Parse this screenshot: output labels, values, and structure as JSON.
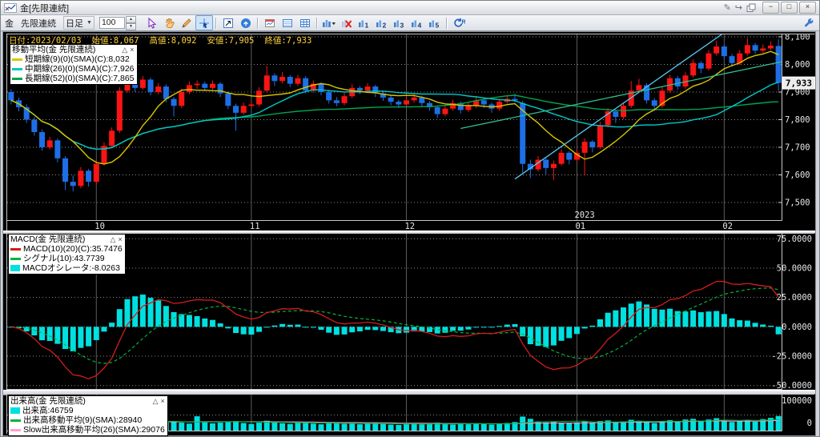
{
  "window": {
    "title": "金[先限連続]",
    "controls": {
      "minimize": "−",
      "maximize": "□",
      "close": "×"
    },
    "title_icons": [
      "pen-icon",
      "redo-icon",
      "layers-icon"
    ]
  },
  "toolbar": {
    "instrument": "金",
    "contract": "先限連続",
    "timeframe": "日足",
    "bar_count": "100",
    "icon_buttons": [
      {
        "name": "select-tool-icon",
        "kind": "select"
      },
      {
        "name": "pan-hand-icon",
        "kind": "hand"
      },
      {
        "name": "draw-line-icon",
        "kind": "pencil"
      },
      {
        "name": "crosshair-tool-icon",
        "kind": "crosshair",
        "active": true
      },
      {
        "kind": "sep"
      },
      {
        "name": "chart-pointer-icon",
        "kind": "chartcursor"
      },
      {
        "name": "jump-latest-icon",
        "kind": "jump"
      },
      {
        "kind": "sep"
      },
      {
        "name": "new-chart-window-icon",
        "kind": "newwin"
      },
      {
        "name": "data-table-icon",
        "kind": "table"
      },
      {
        "name": "grid-settings-icon",
        "kind": "grid"
      },
      {
        "kind": "sep"
      },
      {
        "name": "chart-style-dropdown-icon",
        "kind": "barsdd"
      },
      {
        "name": "remove-indicator-icon",
        "kind": "redx"
      },
      {
        "name": "layout-1-icon",
        "kind": "preset",
        "n": "1"
      },
      {
        "name": "layout-2-icon",
        "kind": "preset",
        "n": "2"
      },
      {
        "name": "layout-3-icon",
        "kind": "preset",
        "n": "3"
      },
      {
        "name": "layout-4-icon",
        "kind": "preset",
        "n": "4"
      },
      {
        "name": "layout-5-icon",
        "kind": "preset",
        "n": "5"
      },
      {
        "kind": "sep"
      },
      {
        "name": "reload-icon",
        "kind": "reload"
      }
    ]
  },
  "info_bar": {
    "date": "日付:2023/02/03",
    "open": "始値:8,067",
    "high": "高値:8,092",
    "low": "安値:7,905",
    "close": "終値:7,933"
  },
  "ui": {
    "legend_collapse": "△",
    "legend_close": "×"
  },
  "chart_data": [
    {
      "type": "candlestick",
      "instrument": "金[先限連続]",
      "timeframe": "日足",
      "x_axis": {
        "tick_labels": [
          "10",
          "11",
          "12",
          "01",
          "02"
        ],
        "tick_positions": [
          11,
          31,
          51,
          73,
          92
        ],
        "year_label": "2023",
        "year_position": 73
      },
      "y_axis": {
        "ticks": [
          {
            "v": 8100,
            "label": "8,100"
          },
          {
            "v": 8000,
            "label": "8,000"
          },
          {
            "v": 7900,
            "label": "7,900"
          },
          {
            "v": 7800,
            "label": "7,800"
          },
          {
            "v": 7700,
            "label": "7,700"
          },
          {
            "v": 7600,
            "label": "7,600"
          },
          {
            "v": 7500,
            "label": "7,500"
          }
        ],
        "current": {
          "v": 7933,
          "label": "7,933"
        }
      },
      "legend": {
        "title": "移動平均(金  先限連続)",
        "series": [
          {
            "label": "短期線(9)(0)(SMA)(C):8,032",
            "color": "#d8c600",
            "period": 9
          },
          {
            "label": "中期線(26)(0)(SMA)(C):7,926",
            "color": "#00c8c8",
            "period": 26
          },
          {
            "label": "長期線(52)(0)(SMA)(C):7,865",
            "color": "#00a550",
            "period": 52
          }
        ]
      },
      "colors": {
        "up": "#fa1414",
        "down": "#1e6fe6",
        "grid": "#8c8c8c",
        "vgrid": "#5c5c5c",
        "border": "#c8c8c8",
        "bg": "#000000"
      },
      "trend_lines": [
        {
          "from": [
            65,
            7585
          ],
          "to": [
            92.5,
            8125
          ],
          "color": "#55c8f0"
        },
        {
          "from": [
            58,
            7768
          ],
          "to": [
            99.5,
            8010
          ],
          "color": "#2fbf8f"
        }
      ],
      "candles": [
        [
          7900,
          7910,
          7855,
          7870
        ],
        [
          7870,
          7880,
          7830,
          7845
        ],
        [
          7845,
          7855,
          7788,
          7800
        ],
        [
          7800,
          7810,
          7742,
          7755
        ],
        [
          7755,
          7765,
          7688,
          7700
        ],
        [
          7700,
          7738,
          7692,
          7725
        ],
        [
          7725,
          7732,
          7645,
          7660
        ],
        [
          7660,
          7668,
          7545,
          7575
        ],
        [
          7575,
          7598,
          7540,
          7560
        ],
        [
          7560,
          7628,
          7552,
          7615
        ],
        [
          7615,
          7622,
          7558,
          7575
        ],
        [
          7575,
          7652,
          7568,
          7640
        ],
        [
          7640,
          7718,
          7634,
          7705
        ],
        [
          7705,
          7772,
          7698,
          7760
        ],
        [
          7760,
          7918,
          7752,
          7905
        ],
        [
          7905,
          7990,
          7898,
          7950
        ],
        [
          7950,
          7962,
          7900,
          7915
        ],
        [
          7915,
          7958,
          7908,
          7945
        ],
        [
          7945,
          7952,
          7888,
          7900
        ],
        [
          7900,
          7932,
          7892,
          7920
        ],
        [
          7920,
          7928,
          7862,
          7875
        ],
        [
          7875,
          7882,
          7812,
          7850
        ],
        [
          7850,
          7912,
          7842,
          7900
        ],
        [
          7900,
          7938,
          7892,
          7925
        ],
        [
          7925,
          7942,
          7912,
          7930
        ],
        [
          7930,
          7938,
          7902,
          7915
        ],
        [
          7915,
          7942,
          7908,
          7930
        ],
        [
          7930,
          7936,
          7882,
          7895
        ],
        [
          7895,
          7902,
          7838,
          7850
        ],
        [
          7850,
          7858,
          7760,
          7825
        ],
        [
          7825,
          7862,
          7818,
          7850
        ],
        [
          7850,
          7868,
          7842,
          7855
        ],
        [
          7855,
          7918,
          7848,
          7905
        ],
        [
          7905,
          7995,
          7898,
          7960
        ],
        [
          7960,
          7968,
          7922,
          7940
        ],
        [
          7940,
          7972,
          7932,
          7955
        ],
        [
          7955,
          7962,
          7918,
          7930
        ],
        [
          7930,
          7962,
          7922,
          7950
        ],
        [
          7950,
          7958,
          7895,
          7905
        ],
        [
          7905,
          7942,
          7898,
          7930
        ],
        [
          7930,
          7936,
          7888,
          7900
        ],
        [
          7900,
          7908,
          7858,
          7870
        ],
        [
          7870,
          7882,
          7848,
          7860
        ],
        [
          7860,
          7898,
          7852,
          7885
        ],
        [
          7885,
          7928,
          7878,
          7915
        ],
        [
          7915,
          7922,
          7892,
          7905
        ],
        [
          7905,
          7932,
          7898,
          7920
        ],
        [
          7920,
          7926,
          7882,
          7895
        ],
        [
          7895,
          7902,
          7868,
          7880
        ],
        [
          7880,
          7888,
          7852,
          7865
        ],
        [
          7865,
          7872,
          7842,
          7855
        ],
        [
          7855,
          7882,
          7848,
          7870
        ],
        [
          7870,
          7892,
          7862,
          7880
        ],
        [
          7880,
          7886,
          7848,
          7860
        ],
        [
          7860,
          7868,
          7832,
          7845
        ],
        [
          7845,
          7852,
          7805,
          7820
        ],
        [
          7820,
          7852,
          7812,
          7840
        ],
        [
          7840,
          7872,
          7832,
          7860
        ],
        [
          7860,
          7866,
          7822,
          7835
        ],
        [
          7835,
          7862,
          7828,
          7850
        ],
        [
          7850,
          7882,
          7842,
          7870
        ],
        [
          7870,
          7878,
          7842,
          7855
        ],
        [
          7855,
          7862,
          7825,
          7840
        ],
        [
          7840,
          7875,
          7832,
          7865
        ],
        [
          7865,
          7888,
          7858,
          7875
        ],
        [
          7875,
          7895,
          7862,
          7870
        ],
        [
          7860,
          7868,
          7608,
          7640
        ],
        [
          7640,
          7655,
          7588,
          7620
        ],
        [
          7620,
          7668,
          7612,
          7655
        ],
        [
          7655,
          7662,
          7602,
          7625
        ],
        [
          7625,
          7652,
          7582,
          7640
        ],
        [
          7640,
          7692,
          7634,
          7680
        ],
        [
          7680,
          7686,
          7638,
          7655
        ],
        [
          7655,
          7692,
          7648,
          7680
        ],
        [
          7680,
          7732,
          7598,
          7720
        ],
        [
          7720,
          7726,
          7682,
          7700
        ],
        [
          7700,
          7792,
          7694,
          7780
        ],
        [
          7780,
          7842,
          7772,
          7830
        ],
        [
          7830,
          7836,
          7788,
          7810
        ],
        [
          7810,
          7862,
          7802,
          7850
        ],
        [
          7850,
          7940,
          7842,
          7905
        ],
        [
          7905,
          7948,
          7898,
          7925
        ],
        [
          7925,
          7932,
          7858,
          7870
        ],
        [
          7870,
          7878,
          7832,
          7850
        ],
        [
          7850,
          7918,
          7842,
          7905
        ],
        [
          7905,
          7962,
          7898,
          7950
        ],
        [
          7950,
          7958,
          7908,
          7920
        ],
        [
          7920,
          7972,
          7912,
          7960
        ],
        [
          7960,
          8018,
          7952,
          8005
        ],
        [
          8005,
          8012,
          7968,
          7985
        ],
        [
          7985,
          8052,
          7978,
          8040
        ],
        [
          8040,
          8085,
          8032,
          8065
        ],
        [
          8065,
          8072,
          8018,
          8030
        ],
        [
          8030,
          8038,
          7992,
          8005
        ],
        [
          8005,
          8052,
          7998,
          8040
        ],
        [
          8040,
          8095,
          8032,
          8070
        ],
        [
          8070,
          8078,
          8038,
          8050
        ],
        [
          8050,
          8072,
          8042,
          8058
        ],
        [
          8058,
          8084,
          8052,
          8068
        ],
        [
          8067,
          8092,
          7905,
          7933
        ]
      ]
    },
    {
      "type": "macd",
      "params": {
        "fast": 10,
        "slow": 20,
        "signal": 10
      },
      "display_scale": 0.65,
      "y_axis": {
        "ticks": [
          {
            "v": 75,
            "label": "75.0000"
          },
          {
            "v": 50,
            "label": "50.0000"
          },
          {
            "v": 25,
            "label": "25.0000"
          },
          {
            "v": 0,
            "label": "0.0000"
          },
          {
            "v": -25,
            "label": "-25.0000"
          },
          {
            "v": -50,
            "label": "-50.0000"
          }
        ]
      },
      "legend": {
        "title": "MACD(金  先限連続)",
        "series": [
          {
            "label": "MACD(10)(20)(C):35.7476",
            "color": "#d41c1c",
            "style": "solid"
          },
          {
            "label": "シグナル(10):43.7739",
            "color": "#00b43c",
            "style": "dashed"
          },
          {
            "label": "MACDオシレータ:-8.0263",
            "color": "#00e0e0",
            "style": "bar"
          }
        ]
      }
    },
    {
      "type": "volume",
      "y_axis": {
        "ticks": [
          {
            "v": 100000,
            "label": "100000"
          },
          {
            "v": 0,
            "label": "0"
          }
        ],
        "grid_v": 50000
      },
      "legend": {
        "title": "出来高(金  先限連続)",
        "series": [
          {
            "label": "出来高:46759",
            "color": "#00e0e0",
            "style": "bar"
          },
          {
            "label": "出来高移動平均(9)(SMA):28940",
            "color": "#00b43c",
            "style": "solid",
            "period": 9
          },
          {
            "label": "Slow出来高移動平均(26)(SMA):29076",
            "color": "#ff9ed2",
            "style": "solid",
            "period": 26
          }
        ]
      },
      "values": [
        26000,
        24000,
        28000,
        30000,
        27000,
        22000,
        25000,
        36000,
        32000,
        28000,
        24000,
        27000,
        30000,
        33000,
        40000,
        38000,
        30000,
        26000,
        24000,
        25000,
        27000,
        30000,
        26000,
        23000,
        46000,
        28000,
        24000,
        26000,
        29000,
        31000,
        25000,
        22000,
        26000,
        32000,
        27000,
        24000,
        22000,
        25000,
        27000,
        23000,
        21000,
        24000,
        26000,
        22000,
        25000,
        21000,
        23000,
        25000,
        22000,
        20000,
        19000,
        22000,
        24000,
        21000,
        23000,
        26000,
        22000,
        20000,
        23000,
        21000,
        24000,
        22000,
        20000,
        23000,
        25000,
        28000,
        45000,
        38000,
        30000,
        27000,
        29000,
        26000,
        24000,
        27000,
        30000,
        26000,
        31000,
        33000,
        28000,
        30000,
        35000,
        32000,
        27000,
        25000,
        31000,
        34000,
        29000,
        36000,
        38000,
        30000,
        36000,
        40000,
        32000,
        28000,
        30000,
        35000,
        29000,
        37000,
        41000,
        46759
      ]
    }
  ]
}
